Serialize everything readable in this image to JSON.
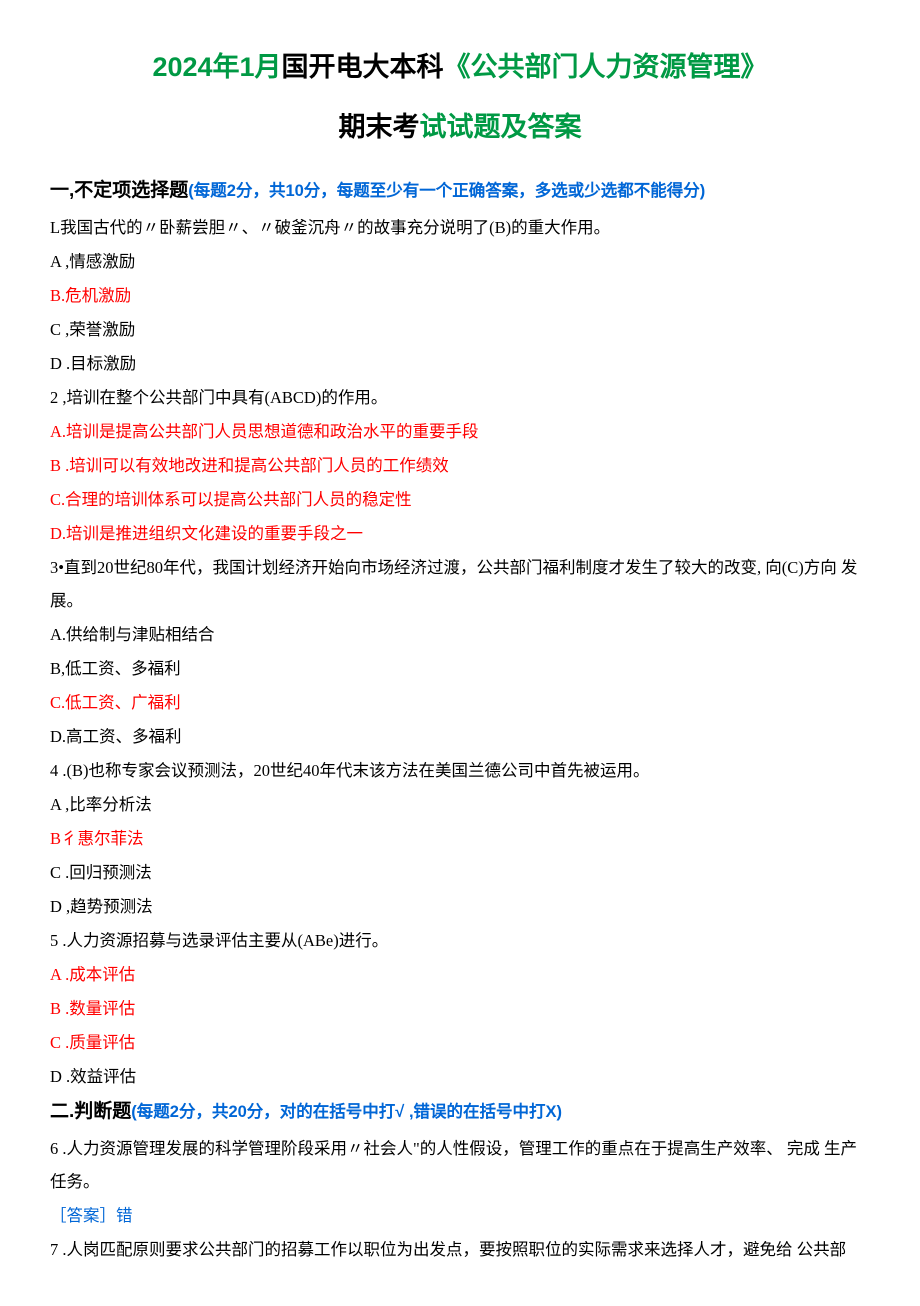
{
  "colors": {
    "green": "#009944",
    "black": "#000000",
    "red": "#ff0000",
    "blue": "#0066d6",
    "background": "#ffffff"
  },
  "typography": {
    "title_fontsize": 27,
    "title_fontfamily": "Microsoft YaHei",
    "body_fontsize": 16.5,
    "body_fontfamily": "SimSun",
    "section_fontsize": 19,
    "line_height": 2.0
  },
  "title": {
    "line1": {
      "seg1": "2024年1月",
      "seg2": "国开电大本科",
      "seg3": "《公共部门人力资源管理》"
    },
    "line2": {
      "seg1": "期末考",
      "seg2": "试试题及答案"
    }
  },
  "section1": {
    "heading": "一,不定项选择题",
    "instruction": "(每题2分，共10分，每题至少有一个正确答案，多选或少选都不能得分)",
    "questions": [
      {
        "stem": "L我国古代的〃卧薪尝胆〃、〃破釜沉舟〃的故事充分说明了(B)的重大作用。",
        "options": [
          {
            "text": "A ,情感激励",
            "correct": false
          },
          {
            "text": "B.危机激励",
            "correct": true
          },
          {
            "text": "C ,荣誉激励",
            "correct": false
          },
          {
            "text": "D .目标激励",
            "correct": false
          }
        ]
      },
      {
        "stem": "2 ,培训在整个公共部门中具有(ABCD)的作用。",
        "options": [
          {
            "text": "A.培训是提高公共部门人员思想道德和政治水平的重要手段",
            "correct": true
          },
          {
            "text": "B .培训可以有效地改进和提高公共部门人员的工作绩效",
            "correct": true
          },
          {
            "text": "C.合理的培训体系可以提高公共部门人员的稳定性",
            "correct": true
          },
          {
            "text": "D.培训是推进组织文化建设的重要手段之一",
            "correct": true
          }
        ]
      },
      {
        "stem": "3•直到20世纪80年代，我国计划经济开始向市场经济过渡，公共部门福利制度才发生了较大的改变, 向(C)方向 发展。",
        "options": [
          {
            "text": "A.供给制与津贴相结合",
            "correct": false
          },
          {
            "text": "B,低工资、多福利",
            "correct": false
          },
          {
            "text": "C.低工资、广福利",
            "correct": true
          },
          {
            "text": "D.高工资、多福利",
            "correct": false
          }
        ]
      },
      {
        "stem": "4  .(B)也称专家会议预测法，20世纪40年代末该方法在美国兰德公司中首先被运用。",
        "options": [
          {
            "text": "A ,比率分析法",
            "correct": false
          },
          {
            "text": "B彳惠尔菲法",
            "correct": true
          },
          {
            "text": "C .回归预测法",
            "correct": false
          },
          {
            "text": "D ,趋势预测法",
            "correct": false
          }
        ]
      },
      {
        "stem": "5  .人力资源招募与选录评估主要从(ABe)进行。",
        "options": [
          {
            "text": "A .成本评估",
            "correct": true
          },
          {
            "text": "B .数量评估",
            "correct": true
          },
          {
            "text": "C .质量评估",
            "correct": true
          },
          {
            "text": "D .效益评估",
            "correct": false
          }
        ]
      }
    ]
  },
  "section2": {
    "heading": "二.判断题",
    "instruction": "(每题2分，共20分，对的在括号中打√  ,错误的在括号中打X)",
    "questions": [
      {
        "stem": "6  .人力资源管理发展的科学管理阶段采用〃社会人\"的人性假设，管理工作的重点在于提高生产效率、 完成 生产任务。",
        "answer_label": "［答案］错"
      },
      {
        "stem": "7  .人岗匹配原则要求公共部门的招募工作以职位为出发点，要按照职位的实际需求来选择人才，避免给 公共部"
      }
    ]
  }
}
